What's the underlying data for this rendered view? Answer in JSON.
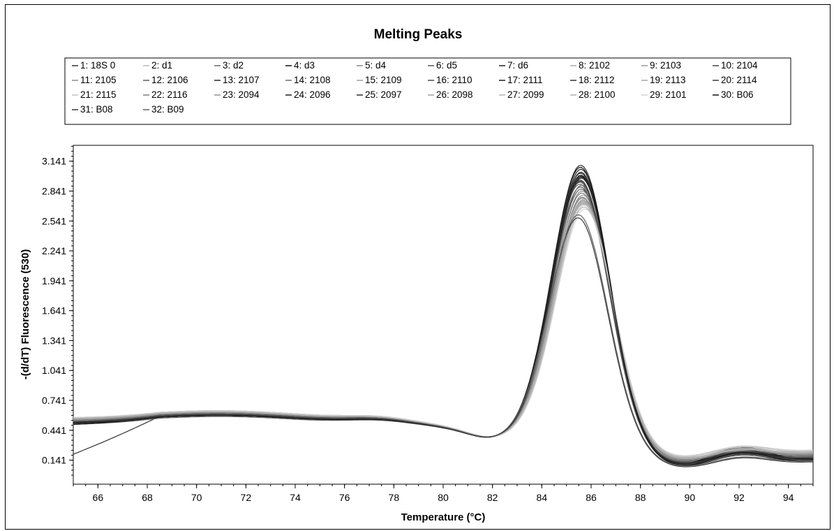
{
  "chart_data": {
    "type": "line",
    "title": "Melting Peaks",
    "xlabel": "Temperature (°C)",
    "ylabel": "-(d/dT) Fluorescence (530)",
    "xlim": [
      65,
      95
    ],
    "ylim": [
      -0.1,
      3.3
    ],
    "x_ticks": [
      66,
      68,
      70,
      72,
      74,
      76,
      78,
      80,
      82,
      84,
      86,
      88,
      90,
      92,
      94
    ],
    "y_ticks": [
      "0.141",
      "0.441",
      "0.741",
      "1.041",
      "1.341",
      "1.641",
      "1.941",
      "2.241",
      "2.541",
      "2.841",
      "3.141"
    ],
    "grid": false,
    "legend_position": "top",
    "series": [
      {
        "name": "1: 18S 0",
        "color": "#333333",
        "peak": 3.03,
        "low": 0.2,
        "base": 0.54,
        "shift": 0.0,
        "dip": 0.05,
        "bump": 0.21
      },
      {
        "name": "2: d1",
        "color": "#bbbbbb",
        "peak": 2.76,
        "low": 0.55,
        "base": 0.57,
        "shift": 0.12,
        "dip": 0.12,
        "bump": 0.24
      },
      {
        "name": "3: d2",
        "color": "#666666",
        "peak": 2.91,
        "low": 0.5,
        "base": 0.52,
        "shift": -0.05,
        "dip": 0.04,
        "bump": 0.16
      },
      {
        "name": "4: d3",
        "color": "#111111",
        "peak": 2.98,
        "low": 0.52,
        "base": 0.55,
        "shift": 0.02,
        "dip": 0.06,
        "bump": 0.2
      },
      {
        "name": "5: d4",
        "color": "#888888",
        "peak": 2.84,
        "low": 0.54,
        "base": 0.56,
        "shift": 0.05,
        "dip": 0.1,
        "bump": 0.19
      },
      {
        "name": "6: d5",
        "color": "#555555",
        "peak": 2.88,
        "low": 0.53,
        "base": 0.55,
        "shift": -0.02,
        "dip": 0.08,
        "bump": 0.18
      },
      {
        "name": "7: d6",
        "color": "#222222",
        "peak": 3.06,
        "low": 0.51,
        "base": 0.54,
        "shift": 0.0,
        "dip": 0.03,
        "bump": 0.15
      },
      {
        "name": "8: 2102",
        "color": "#aaaaaa",
        "peak": 2.71,
        "low": 0.56,
        "base": 0.58,
        "shift": 0.1,
        "dip": 0.11,
        "bump": 0.22
      },
      {
        "name": "9: 2103",
        "color": "#999999",
        "peak": 2.8,
        "low": 0.55,
        "base": 0.56,
        "shift": 0.08,
        "dip": 0.09,
        "bump": 0.2
      },
      {
        "name": "10: 2104",
        "color": "#444444",
        "peak": 2.95,
        "low": 0.52,
        "base": 0.54,
        "shift": -0.03,
        "dip": 0.05,
        "bump": 0.17
      },
      {
        "name": "11: 2105",
        "color": "#8c8c8c",
        "peak": 2.78,
        "low": 0.54,
        "base": 0.55,
        "shift": 0.06,
        "dip": 0.1,
        "bump": 0.21
      },
      {
        "name": "12: 2106",
        "color": "#5c5c5c",
        "peak": 2.86,
        "low": 0.53,
        "base": 0.55,
        "shift": 0.01,
        "dip": 0.07,
        "bump": 0.18
      },
      {
        "name": "13: 2107",
        "color": "#262626",
        "peak": 3.1,
        "low": 0.51,
        "base": 0.53,
        "shift": -0.01,
        "dip": 0.04,
        "bump": 0.23
      },
      {
        "name": "14: 2108",
        "color": "#6e6e6e",
        "peak": 2.9,
        "low": 0.52,
        "base": 0.54,
        "shift": 0.03,
        "dip": 0.06,
        "bump": 0.19
      },
      {
        "name": "15: 2109",
        "color": "#9e9e9e",
        "peak": 2.74,
        "low": 0.55,
        "base": 0.56,
        "shift": 0.09,
        "dip": 0.11,
        "bump": 0.2
      },
      {
        "name": "16: 2110",
        "color": "#4a4a4a",
        "peak": 2.93,
        "low": 0.52,
        "base": 0.53,
        "shift": -0.04,
        "dip": 0.05,
        "bump": 0.16
      },
      {
        "name": "17: 2111",
        "color": "#1a1a1a",
        "peak": 3.0,
        "low": 0.51,
        "base": 0.55,
        "shift": 0.0,
        "dip": 0.04,
        "bump": 0.22
      },
      {
        "name": "18: 2112",
        "color": "#303030",
        "peak": 2.97,
        "low": 0.52,
        "base": 0.54,
        "shift": 0.02,
        "dip": 0.05,
        "bump": 0.18
      },
      {
        "name": "19: 2113",
        "color": "#a4a4a4",
        "peak": 2.72,
        "low": 0.56,
        "base": 0.57,
        "shift": 0.11,
        "dip": 0.12,
        "bump": 0.21
      },
      {
        "name": "20: 2114",
        "color": "#3c3c3c",
        "peak": 2.94,
        "low": 0.52,
        "base": 0.54,
        "shift": -0.02,
        "dip": 0.06,
        "bump": 0.17
      },
      {
        "name": "21: 2115",
        "color": "#c2c2c2",
        "peak": 2.7,
        "low": 0.57,
        "base": 0.58,
        "shift": 0.14,
        "dip": 0.13,
        "bump": 0.23
      },
      {
        "name": "22: 2116",
        "color": "#7a7a7a",
        "peak": 2.82,
        "low": 0.54,
        "base": 0.55,
        "shift": 0.04,
        "dip": 0.09,
        "bump": 0.19
      },
      {
        "name": "23: 2094",
        "color": "#909090",
        "peak": 2.77,
        "low": 0.55,
        "base": 0.56,
        "shift": 0.07,
        "dip": 0.1,
        "bump": 0.2
      },
      {
        "name": "24: 2096",
        "color": "#202020",
        "peak": 2.99,
        "low": 0.52,
        "base": 0.54,
        "shift": 0.0,
        "dip": 0.05,
        "bump": 0.18
      },
      {
        "name": "25: 2097",
        "color": "#2c2c2c",
        "peak": 3.02,
        "low": 0.51,
        "base": 0.55,
        "shift": -0.01,
        "dip": 0.04,
        "bump": 0.2
      },
      {
        "name": "26: 2098",
        "color": "#a0a0a0",
        "peak": 2.75,
        "low": 0.55,
        "base": 0.57,
        "shift": 0.09,
        "dip": 0.11,
        "bump": 0.22
      },
      {
        "name": "27: 2099",
        "color": "#b4b4b4",
        "peak": 2.68,
        "low": 0.56,
        "base": 0.58,
        "shift": 0.13,
        "dip": 0.12,
        "bump": 0.21
      },
      {
        "name": "28: 2100",
        "color": "#b0b0b0",
        "peak": 2.73,
        "low": 0.56,
        "base": 0.57,
        "shift": 0.1,
        "dip": 0.11,
        "bump": 0.2
      },
      {
        "name": "29: 2101",
        "color": "#d2d2d2",
        "peak": 2.66,
        "low": 0.57,
        "base": 0.58,
        "shift": 0.16,
        "dip": 0.14,
        "bump": 0.24
      },
      {
        "name": "30: B06",
        "color": "#151515",
        "peak": 3.08,
        "low": 0.5,
        "base": 0.53,
        "shift": -0.02,
        "dip": 0.03,
        "bump": 0.17
      },
      {
        "name": "31: B08",
        "color": "#383838",
        "peak": 2.57,
        "low": 0.53,
        "base": 0.54,
        "shift": -0.12,
        "dip": 0.02,
        "bump": 0.12
      },
      {
        "name": "32: B09",
        "color": "#606060",
        "peak": 2.6,
        "low": 0.53,
        "base": 0.55,
        "shift": -0.1,
        "dip": 0.03,
        "bump": 0.13
      }
    ]
  }
}
